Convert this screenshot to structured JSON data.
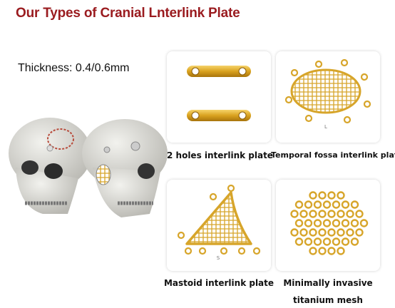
{
  "title": "Our Types of Cranial Lnterlink Plate",
  "thickness": "Thickness: 0.4/0.6mm",
  "products": [
    {
      "caption": [
        "2 holes interlink plate"
      ]
    },
    {
      "caption": [
        "Temporal fossa interlink plate"
      ],
      "size_mark": "L"
    },
    {
      "caption": [
        "Mastoid interlink plate"
      ],
      "size_mark": "S"
    },
    {
      "caption": [
        "Minimally invasive",
        "titanium mesh"
      ]
    }
  ]
}
